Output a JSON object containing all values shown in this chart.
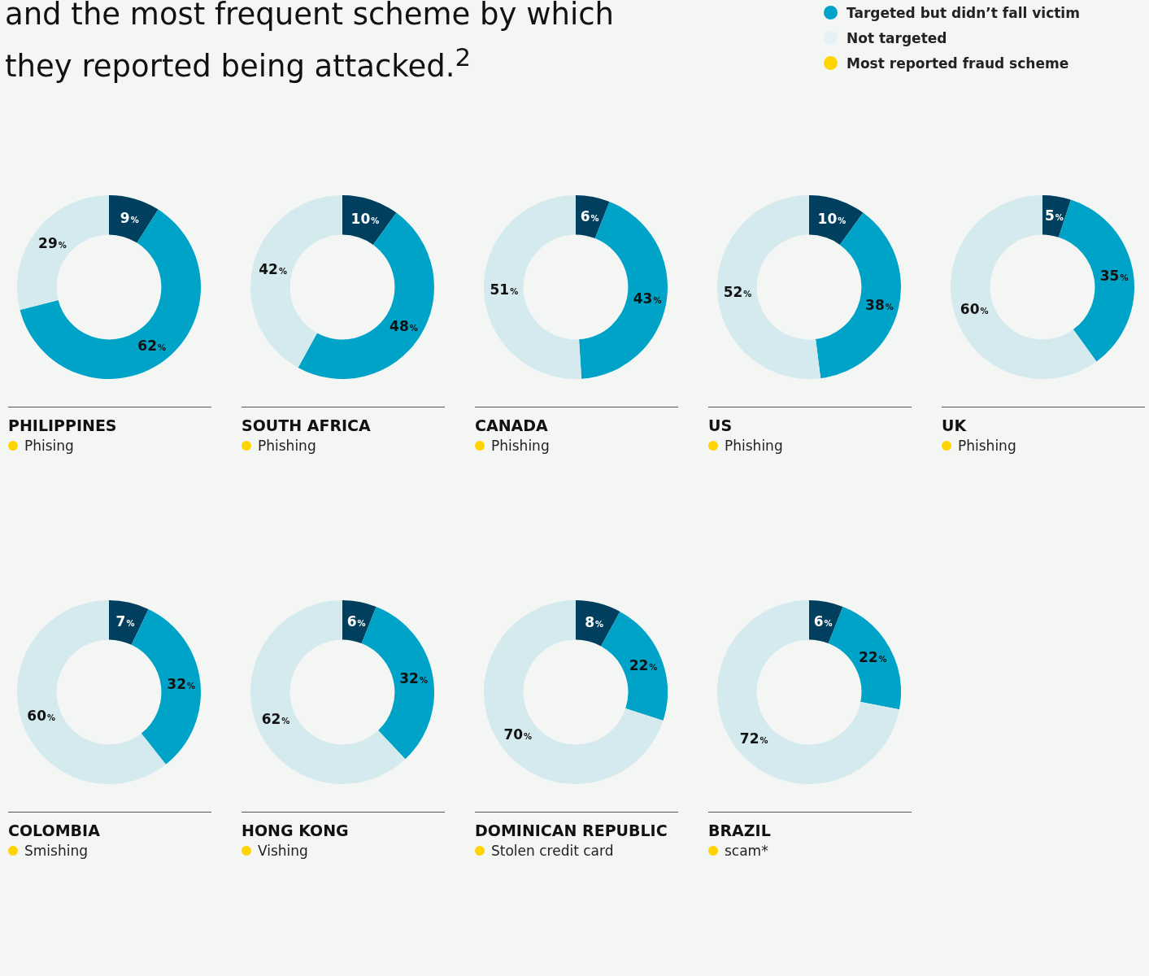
{
  "chart_data": [
    {
      "type": "other",
      "title": "and the most frequent scheme by which they reported being attacked.$^{2}$",
      "legend": "top right",
      "series": [
        {
          "name": "Targeted but didn’t fall victim",
          "color": "#00a3c8"
        },
        {
          "name": "Not targeted",
          "color": "#e4f1f5"
        },
        {
          "name": "Most reported fraud scheme",
          "color": "#ffd400"
        }
      ]
    },
    {
      "type": "donut",
      "title": "PHILIPPINES",
      "annotations": [
        "Phising"
      ],
      "categories": [
        null,
        null,
        null
      ],
      "values": [
        9,
        62,
        29
      ],
      "value_labels": [
        "9%",
        "62%",
        "29%"
      ],
      "colors": [
        "#003f5e",
        "#00a3c8",
        "#d4eaef"
      ]
    },
    {
      "type": "donut",
      "title": "SOUTH AFRICA",
      "annotations": [
        "Phishing"
      ],
      "categories": [
        null,
        null,
        null
      ],
      "values": [
        10,
        48,
        42
      ],
      "value_labels": [
        "10%",
        "48%",
        "42%"
      ],
      "colors": [
        "#003f5e",
        "#00a3c8",
        "#d4eaef"
      ]
    },
    {
      "type": "donut",
      "title": "CANADA",
      "annotations": [
        "Phishing"
      ],
      "categories": [
        null,
        null,
        null
      ],
      "values": [
        6,
        43,
        51
      ],
      "value_labels": [
        "6%",
        "43%",
        "51%"
      ],
      "colors": [
        "#003f5e",
        "#00a3c8",
        "#d4eaef"
      ]
    },
    {
      "type": "donut",
      "title": "US",
      "annotations": [
        "Phishing"
      ],
      "categories": [
        null,
        null,
        null
      ],
      "values": [
        10,
        38,
        52
      ],
      "value_labels": [
        "10%",
        "38%",
        "52%"
      ],
      "colors": [
        "#003f5e",
        "#00a3c8",
        "#d4eaef"
      ]
    },
    {
      "type": "donut",
      "title": "UK",
      "annotations": [
        "Phishing"
      ],
      "categories": [
        null,
        null,
        null
      ],
      "values": [
        5,
        35,
        60
      ],
      "value_labels": [
        "5%",
        "35%",
        "60%"
      ],
      "colors": [
        "#003f5e",
        "#00a3c8",
        "#d4eaef"
      ]
    },
    {
      "type": "donut",
      "title": "COLOMBIA",
      "annotations": [
        "Smishing"
      ],
      "categories": [
        null,
        null,
        null
      ],
      "values": [
        7,
        32,
        60
      ],
      "value_labels": [
        "7%",
        "32%",
        "60%"
      ],
      "colors": [
        "#003f5e",
        "#00a3c8",
        "#d4eaef"
      ]
    },
    {
      "type": "donut",
      "title": "HONG KONG",
      "annotations": [
        "Vishing"
      ],
      "categories": [
        null,
        null,
        null
      ],
      "values": [
        6,
        32,
        62
      ],
      "value_labels": [
        "6%",
        "32%",
        "62%"
      ],
      "colors": [
        "#003f5e",
        "#00a3c8",
        "#d4eaef"
      ]
    },
    {
      "type": "donut",
      "title": "DOMINICAN REPUBLIC",
      "annotations": [
        "Stolen credit card"
      ],
      "categories": [
        null,
        null,
        null
      ],
      "values": [
        8,
        22,
        70
      ],
      "value_labels": [
        "8%",
        "22%",
        "70%"
      ],
      "colors": [
        "#003f5e",
        "#00a3c8",
        "#d4eaef"
      ]
    },
    {
      "type": "donut",
      "title": "BRAZIL",
      "annotations": [
        "scam*"
      ],
      "categories": [
        null,
        null,
        null
      ],
      "values": [
        6,
        22,
        72
      ],
      "value_labels": [
        "6%",
        "22%",
        "72%"
      ],
      "colors": [
        "#003f5e",
        "#00a3c8",
        "#d4eaef"
      ]
    }
  ]
}
